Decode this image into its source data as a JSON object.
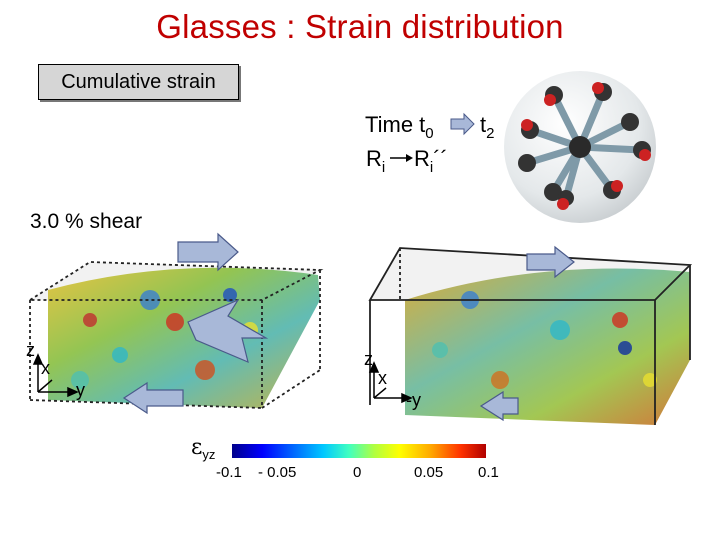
{
  "slide": {
    "title": "Glasses : Strain distribution",
    "label_box": "Cumulative strain",
    "time_prefix": "Time t",
    "time_sub_start": "0",
    "time_end": "t",
    "time_sub_end": "2",
    "r_prefix": "R",
    "r_sub": "i",
    "r2_prefix": "R",
    "r2_sub": "i",
    "r2_primes": "´´",
    "shear_label": "3.0 % shear"
  },
  "axes_left": {
    "z": "z",
    "x": "x",
    "y": "-y"
  },
  "axes_right": {
    "z": "z",
    "x": "x",
    "y": "-y"
  },
  "colorbar": {
    "symbol": "ε",
    "symbol_sub": "yz",
    "ticks": [
      "-0.1",
      "- 0.05",
      "0",
      "0.05",
      "0.1"
    ]
  },
  "colors": {
    "title": "#c00000",
    "arrow_fill": "#a8b8d8",
    "arrow_stroke": "#4a5a8a"
  }
}
